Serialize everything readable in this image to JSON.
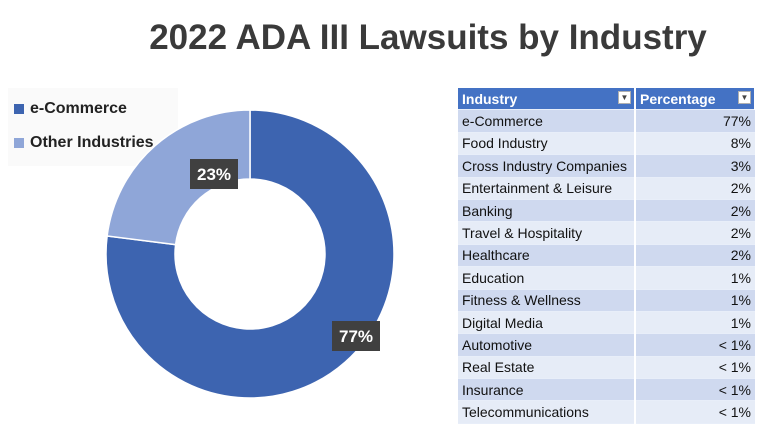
{
  "chart_data": {
    "type": "pie",
    "title": "2022 ADA III Lawsuits by Industry",
    "donut": true,
    "legend_position": "top-left",
    "categories": [
      "e-Commerce",
      "Other Industries"
    ],
    "values": [
      77,
      23
    ],
    "value_labels": [
      "77%",
      "23%"
    ],
    "colors": [
      "#3d64b0",
      "#8fa6d8"
    ],
    "legend": [
      "e-Commerce",
      "Other Industries"
    ]
  },
  "table": {
    "headers": [
      "Industry",
      "Percentage"
    ],
    "rows": [
      [
        "e-Commerce",
        "77%"
      ],
      [
        "Food Industry",
        "8%"
      ],
      [
        "Cross Industry Companies",
        "3%"
      ],
      [
        "Entertainment & Leisure",
        "2%"
      ],
      [
        "Banking",
        "2%"
      ],
      [
        "Travel & Hospitality",
        "2%"
      ],
      [
        "Healthcare",
        "2%"
      ],
      [
        "Education",
        "1%"
      ],
      [
        "Fitness & Wellness",
        "1%"
      ],
      [
        "Digital Media",
        "1%"
      ],
      [
        "Automotive",
        "< 1%"
      ],
      [
        "Real Estate",
        "< 1%"
      ],
      [
        "Insurance",
        "< 1%"
      ],
      [
        "Telecommunications",
        "< 1%"
      ]
    ],
    "header_icon": "dropdown-arrow-icon"
  }
}
